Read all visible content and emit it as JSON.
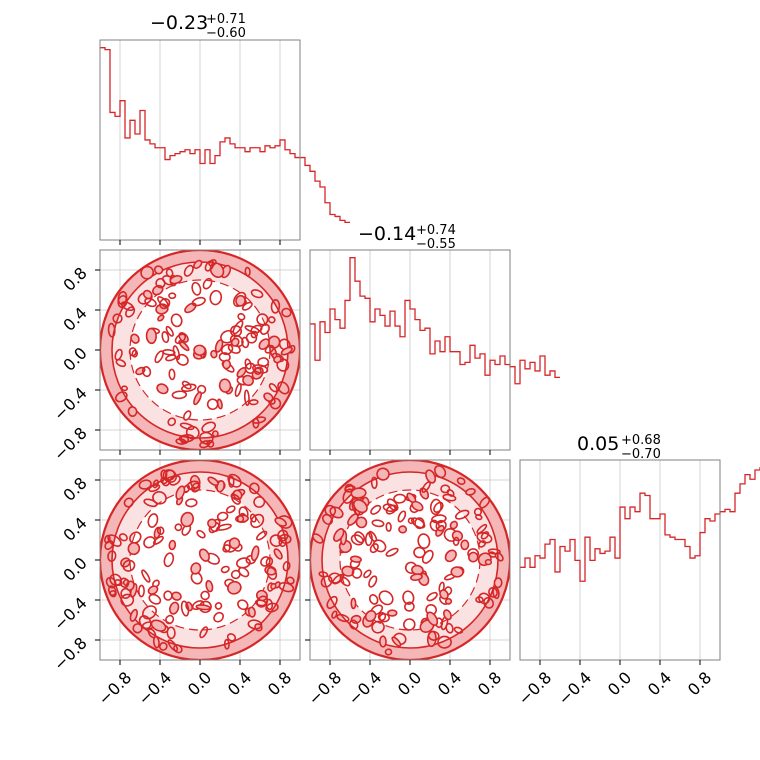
{
  "figure": {
    "color": "#d62728",
    "fill_color": "#f4b6b6"
  },
  "chart_data": {
    "type": "corner",
    "n_params": 3,
    "range": [
      -1,
      1
    ],
    "ticks": [
      -0.8,
      -0.4,
      0.0,
      0.4,
      0.8
    ],
    "tick_labels": [
      "−0.8",
      "−0.4",
      "0.0",
      "0.4",
      "0.8"
    ],
    "grid": true,
    "params": [
      {
        "title_median": "−0.23",
        "title_plus": "+0.71",
        "title_minus": "−0.60",
        "hist_edges_start": -1,
        "hist_bin_width": 0.05,
        "hist_counts": [
          0.98,
          0.97,
          0.65,
          0.63,
          0.71,
          0.52,
          0.61,
          0.54,
          0.66,
          0.51,
          0.49,
          0.47,
          0.47,
          0.41,
          0.43,
          0.44,
          0.45,
          0.46,
          0.44,
          0.46,
          0.39,
          0.46,
          0.39,
          0.43,
          0.5,
          0.52,
          0.49,
          0.47,
          0.47,
          0.45,
          0.47,
          0.47,
          0.45,
          0.48,
          0.47,
          0.48,
          0.51,
          0.46,
          0.44,
          0.42,
          0.42,
          0.38,
          0.35,
          0.3,
          0.27,
          0.19,
          0.13,
          0.12,
          0.1,
          0.09
        ]
      },
      {
        "title_median": "−0.14",
        "title_plus": "+0.74",
        "title_minus": "−0.55",
        "hist_edges_start": -1,
        "hist_bin_width": 0.05,
        "hist_counts": [
          0.59,
          0.42,
          0.6,
          0.55,
          0.66,
          0.61,
          0.57,
          0.7,
          0.9,
          0.79,
          0.72,
          0.71,
          0.6,
          0.66,
          0.63,
          0.58,
          0.65,
          0.58,
          0.53,
          0.7,
          0.66,
          0.61,
          0.56,
          0.57,
          0.45,
          0.51,
          0.46,
          0.53,
          0.46,
          0.46,
          0.4,
          0.41,
          0.49,
          0.43,
          0.45,
          0.35,
          0.42,
          0.4,
          0.44,
          0.4,
          0.39,
          0.31,
          0.42,
          0.38,
          0.41,
          0.37,
          0.44,
          0.35,
          0.37,
          0.34
        ]
      },
      {
        "title_median": "0.05",
        "title_plus": "+0.68",
        "title_minus": "−0.70",
        "hist_edges_start": -1,
        "hist_bin_width": 0.05,
        "hist_counts": [
          0.4,
          0.44,
          0.4,
          0.45,
          0.44,
          0.5,
          0.52,
          0.38,
          0.49,
          0.47,
          0.52,
          0.43,
          0.34,
          0.53,
          0.43,
          0.48,
          0.46,
          0.47,
          0.53,
          0.44,
          0.66,
          0.61,
          0.66,
          0.64,
          0.72,
          0.71,
          0.61,
          0.61,
          0.63,
          0.54,
          0.53,
          0.52,
          0.52,
          0.49,
          0.44,
          0.45,
          0.55,
          0.61,
          0.6,
          0.63,
          0.64,
          0.65,
          0.64,
          0.72,
          0.76,
          0.8,
          0.78,
          0.82,
          0.83,
          0.79
        ]
      }
    ],
    "contour_panels": [
      {
        "x_param": 0,
        "y_param": 1,
        "distribution": "uniform_disk",
        "radius": 1.0,
        "blobs": 140
      },
      {
        "x_param": 0,
        "y_param": 2,
        "distribution": "uniform_disk",
        "radius": 1.0,
        "blobs": 150
      },
      {
        "x_param": 1,
        "y_param": 2,
        "distribution": "uniform_disk",
        "radius": 1.0,
        "blobs": 150
      }
    ]
  }
}
